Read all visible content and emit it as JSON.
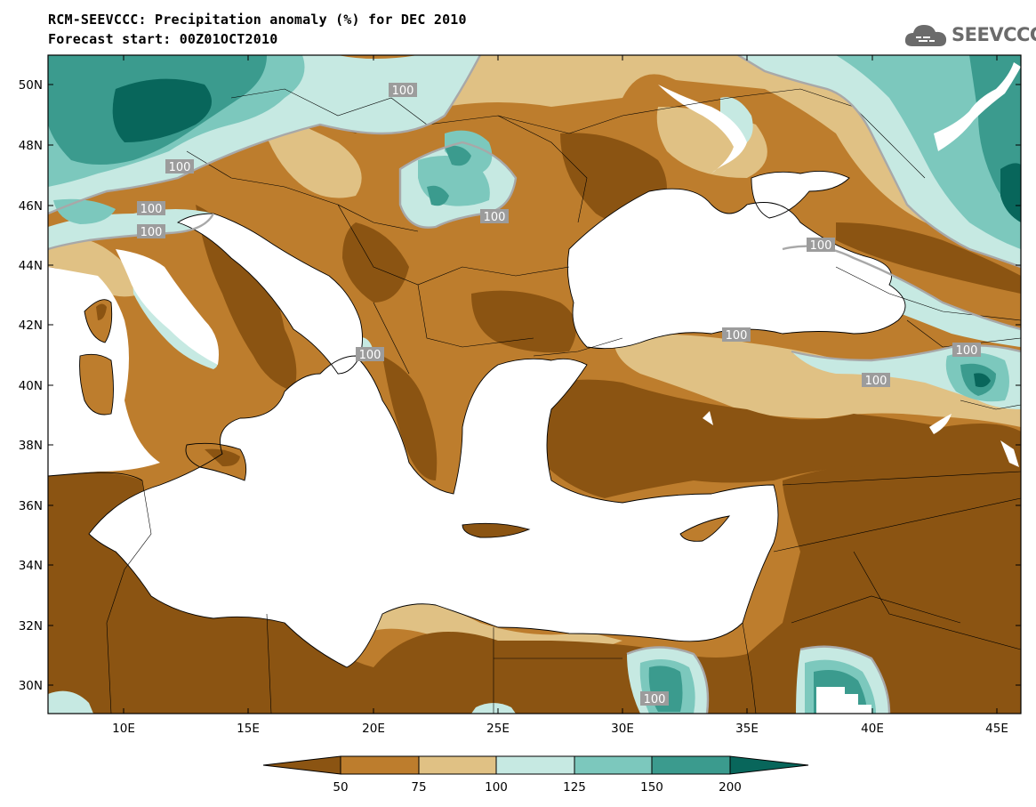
{
  "title_line1": "RCM-SEEVCCC: Precipitation anomaly (%) for DEC 2010",
  "title_line2": "Forecast start: 00Z01OCT2010",
  "logo_text": "SEEVCCC",
  "lat_labels": [
    "50N",
    "48N",
    "46N",
    "44N",
    "42N",
    "40N",
    "38N",
    "36N",
    "34N",
    "32N",
    "30N"
  ],
  "lon_labels": [
    "10E",
    "15E",
    "20E",
    "25E",
    "30E",
    "35E",
    "40E",
    "45E"
  ],
  "contour_labels": [
    "100",
    "100",
    "100",
    "100",
    "100",
    "100",
    "100",
    "100",
    "100",
    "100",
    "100"
  ],
  "legend": {
    "tick_labels": [
      "50",
      "75",
      "100",
      "125",
      "150",
      "200"
    ],
    "colors": [
      "#8b5412",
      "#bd7d2d",
      "#e0c184",
      "#c6e9e2",
      "#7cc8bd",
      "#3b9b8e",
      "#08665b"
    ]
  }
}
